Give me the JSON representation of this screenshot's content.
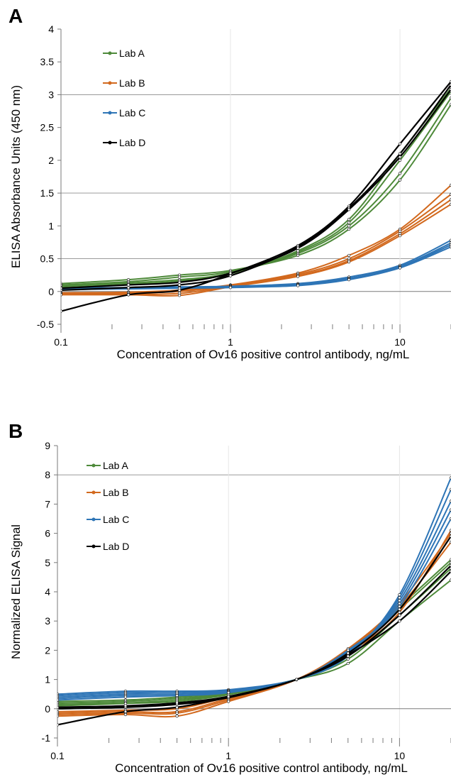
{
  "chart_data": [
    {
      "panel": "A",
      "type": "line",
      "xscale": "log",
      "xlim": [
        0.1,
        20
      ],
      "ylim": [
        -0.5,
        4
      ],
      "x_tick_labels": [
        "0.1",
        "1",
        "10"
      ],
      "y_tick_labels": [
        "-0.5",
        "0",
        "0.5",
        "1",
        "1.5",
        "2",
        "2.5",
        "3",
        "3.5",
        "4"
      ],
      "gridlines_y": [
        0.5,
        1.5,
        3.0
      ],
      "xlabel": "Concentration of Ov16 positive control antibody, ng/mL",
      "ylabel": "ELISA Absorbance Units (450 nm)",
      "legend_position": "top-left",
      "x": [
        0.1,
        0.25,
        0.5,
        1,
        2.5,
        5,
        10,
        20
      ],
      "series": [
        {
          "name": "Lab A",
          "color": "#4E8A3A",
          "runs": [
            [
              0.12,
              0.18,
              0.25,
              0.32,
              0.55,
              0.95,
              1.7,
              2.85
            ],
            [
              0.1,
              0.15,
              0.22,
              0.3,
              0.58,
              1.0,
              1.8,
              2.95
            ],
            [
              0.08,
              0.13,
              0.18,
              0.28,
              0.6,
              1.05,
              2.0,
              3.05
            ],
            [
              0.06,
              0.11,
              0.16,
              0.27,
              0.62,
              1.1,
              2.1,
              3.1
            ]
          ]
        },
        {
          "name": "Lab B",
          "color": "#D2691E",
          "runs": [
            [
              -0.02,
              -0.01,
              0.02,
              0.1,
              0.28,
              0.55,
              0.95,
              1.62
            ],
            [
              -0.03,
              -0.02,
              0.0,
              0.09,
              0.26,
              0.5,
              0.92,
              1.48
            ],
            [
              -0.04,
              -0.04,
              -0.03,
              0.08,
              0.24,
              0.47,
              0.88,
              1.4
            ],
            [
              -0.05,
              -0.05,
              -0.06,
              0.07,
              0.23,
              0.45,
              0.85,
              1.33
            ]
          ]
        },
        {
          "name": "Lab C",
          "color": "#2E75B6",
          "runs": [
            [
              0.05,
              0.06,
              0.07,
              0.08,
              0.12,
              0.22,
              0.4,
              0.78
            ],
            [
              0.04,
              0.05,
              0.06,
              0.07,
              0.11,
              0.2,
              0.38,
              0.74
            ],
            [
              0.04,
              0.05,
              0.06,
              0.07,
              0.1,
              0.19,
              0.37,
              0.71
            ],
            [
              0.03,
              0.04,
              0.05,
              0.06,
              0.09,
              0.18,
              0.36,
              0.68
            ]
          ]
        },
        {
          "name": "Lab D",
          "color": "#000000",
          "runs": [
            [
              -0.3,
              -0.05,
              0.02,
              0.27,
              0.7,
              1.3,
              2.25,
              3.2
            ],
            [
              0.02,
              0.06,
              0.1,
              0.24,
              0.68,
              1.27,
              2.1,
              3.15
            ],
            [
              0.05,
              0.1,
              0.14,
              0.28,
              0.66,
              1.25,
              2.05,
              3.08
            ]
          ]
        }
      ]
    },
    {
      "panel": "B",
      "type": "line",
      "xscale": "log",
      "xlim": [
        0.1,
        20
      ],
      "ylim": [
        -1,
        9
      ],
      "x_tick_labels": [
        "0.1",
        "1",
        "10"
      ],
      "y_tick_labels": [
        "-1",
        "0",
        "1",
        "2",
        "3",
        "4",
        "5",
        "6",
        "7",
        "8",
        "9"
      ],
      "gridlines_y": [
        8
      ],
      "xlabel": "Concentration of Ov16 positive control antibody, ng/mL",
      "ylabel": "Normalized ELISA Signal",
      "legend_position": "top-left",
      "x": [
        0.1,
        0.25,
        0.5,
        1,
        2.5,
        5,
        10,
        20
      ],
      "series": [
        {
          "name": "Lab A",
          "color": "#4E8A3A",
          "runs": [
            [
              0.25,
              0.3,
              0.4,
              0.55,
              1.0,
              1.55,
              3.0,
              4.4
            ],
            [
              0.2,
              0.25,
              0.35,
              0.52,
              1.0,
              1.7,
              3.2,
              4.8
            ],
            [
              0.15,
              0.2,
              0.3,
              0.5,
              1.0,
              1.85,
              3.4,
              5.0
            ],
            [
              0.1,
              0.18,
              0.25,
              0.48,
              1.0,
              2.0,
              3.5,
              5.1
            ]
          ]
        },
        {
          "name": "Lab B",
          "color": "#D2691E",
          "runs": [
            [
              -0.1,
              -0.05,
              0.0,
              0.4,
              1.0,
              1.9,
              3.3,
              6.1
            ],
            [
              -0.15,
              -0.1,
              -0.1,
              0.35,
              1.0,
              1.95,
              3.4,
              5.9
            ],
            [
              -0.2,
              -0.15,
              -0.15,
              0.3,
              1.0,
              2.0,
              3.5,
              5.7
            ],
            [
              -0.25,
              -0.2,
              -0.25,
              0.25,
              1.0,
              2.05,
              3.6,
              6.0
            ]
          ]
        },
        {
          "name": "Lab C",
          "color": "#2E75B6",
          "runs": [
            [
              0.5,
              0.6,
              0.6,
              0.65,
              1.0,
              1.8,
              3.9,
              7.9
            ],
            [
              0.45,
              0.55,
              0.55,
              0.62,
              1.0,
              1.85,
              3.8,
              7.5
            ],
            [
              0.4,
              0.5,
              0.5,
              0.6,
              1.0,
              1.9,
              3.7,
              7.1
            ],
            [
              0.35,
              0.45,
              0.45,
              0.58,
              1.0,
              1.95,
              3.6,
              6.8
            ],
            [
              0.3,
              0.4,
              0.45,
              0.55,
              1.0,
              2.0,
              3.5,
              6.5
            ]
          ]
        },
        {
          "name": "Lab D",
          "color": "#000000",
          "runs": [
            [
              -0.55,
              -0.1,
              0.05,
              0.4,
              1.0,
              1.85,
              3.0,
              4.7
            ],
            [
              0.0,
              0.05,
              0.15,
              0.38,
              1.0,
              1.8,
              3.2,
              4.9
            ],
            [
              0.05,
              0.1,
              0.2,
              0.42,
              1.0,
              1.9,
              3.4,
              5.9
            ]
          ]
        }
      ]
    }
  ]
}
